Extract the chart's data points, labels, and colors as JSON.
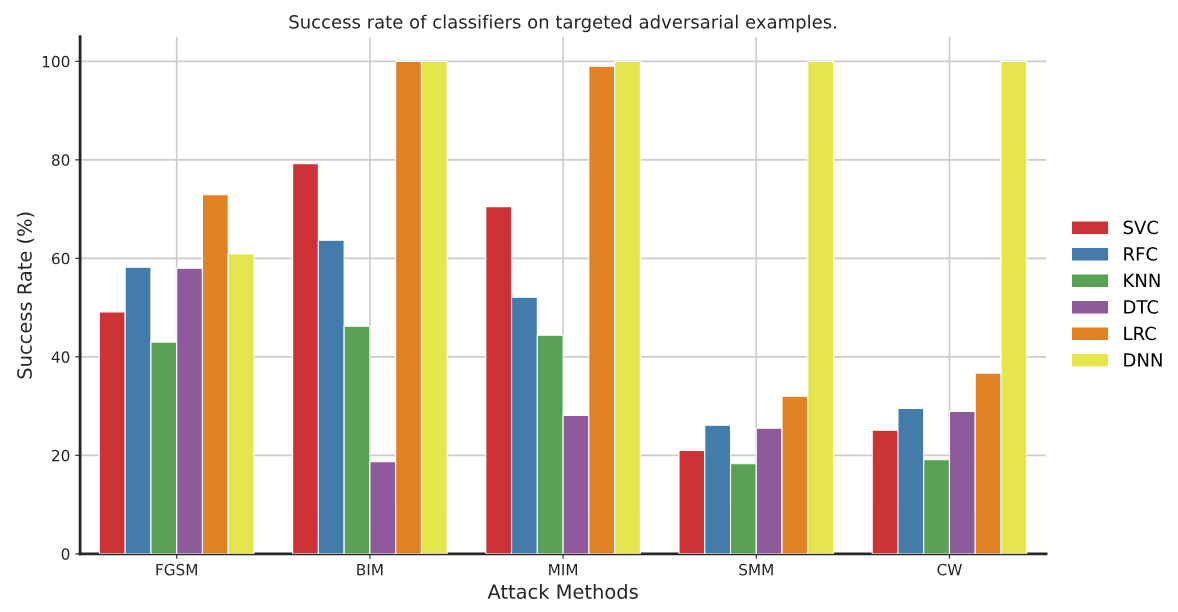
{
  "chart_data": {
    "type": "bar",
    "title": "Success rate of classifiers on targeted adversarial examples.",
    "xlabel": "Attack Methods",
    "ylabel": "Success Rate (%)",
    "categories": [
      "FGSM",
      "BIM",
      "MIM",
      "SMM",
      "CW"
    ],
    "series": [
      {
        "name": "SVC",
        "color": "#cd3236",
        "values": [
          49.1,
          79.2,
          70.5,
          21.0,
          25.1
        ]
      },
      {
        "name": "RFC",
        "color": "#437bab",
        "values": [
          58.2,
          63.7,
          52.1,
          26.1,
          29.5
        ]
      },
      {
        "name": "KNN",
        "color": "#58a155",
        "values": [
          43.0,
          46.2,
          44.4,
          18.3,
          19.1
        ]
      },
      {
        "name": "DTC",
        "color": "#8f5a9c",
        "values": [
          58.0,
          18.7,
          28.1,
          25.5,
          28.9
        ]
      },
      {
        "name": "LRC",
        "color": "#e08125",
        "values": [
          72.9,
          100,
          99.0,
          32.0,
          36.7
        ]
      },
      {
        "name": "DNN",
        "color": "#e5e64e",
        "values": [
          60.9,
          100,
          100,
          100,
          100
        ]
      }
    ],
    "ylim": [
      0,
      105
    ],
    "yticks": [
      0,
      20,
      40,
      60,
      80,
      100
    ],
    "grid": true,
    "legend": "right"
  }
}
